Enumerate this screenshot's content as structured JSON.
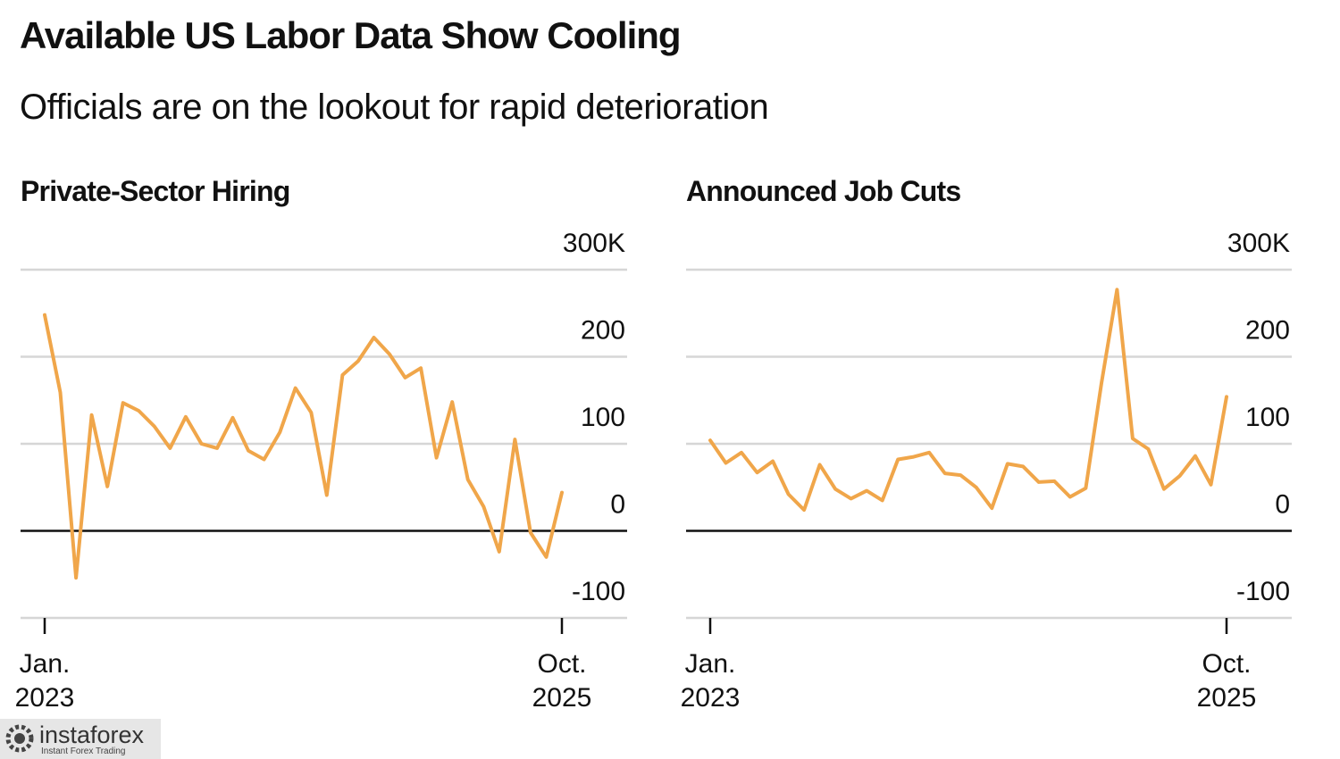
{
  "title": "Available US Labor Data Show Cooling",
  "subtitle": "Officials are on the lookout for rapid deterioration",
  "chart_data": [
    {
      "type": "line",
      "title": "Private-Sector Hiring",
      "color": "#f0a64a",
      "categories": [
        "Jan.\n2023",
        null,
        null,
        null,
        null,
        null,
        null,
        null,
        null,
        null,
        null,
        null,
        null,
        null,
        null,
        null,
        null,
        null,
        null,
        null,
        null,
        null,
        null,
        null,
        null,
        null,
        null,
        null,
        null,
        null,
        null,
        null,
        null,
        "Oct.\n2025"
      ],
      "values": [
        248,
        159,
        -54,
        133,
        51,
        147,
        138,
        120,
        95,
        131,
        100,
        95,
        130,
        92,
        82,
        113,
        164,
        136,
        41,
        179,
        195,
        222,
        203,
        176,
        187,
        84,
        148,
        59,
        28,
        -24,
        105,
        -2,
        -30,
        44
      ],
      "ylim": [
        -100,
        300
      ],
      "yticks": [
        -100,
        0,
        100,
        200,
        {
          "value": 300,
          "label": "300K"
        }
      ],
      "grid": true
    },
    {
      "type": "line",
      "title": "Announced Job Cuts",
      "color": "#f0a64a",
      "categories": [
        "Jan.\n2023",
        null,
        null,
        null,
        null,
        null,
        null,
        null,
        null,
        null,
        null,
        null,
        null,
        null,
        null,
        null,
        null,
        null,
        null,
        null,
        null,
        null,
        null,
        null,
        null,
        null,
        null,
        null,
        null,
        null,
        null,
        null,
        null,
        "Oct.\n2025"
      ],
      "values": [
        104,
        78,
        90,
        67,
        80,
        42,
        24,
        76,
        48,
        37,
        46,
        35,
        82,
        85,
        90,
        66,
        64,
        50,
        26,
        77,
        74,
        56,
        57,
        39,
        49,
        169,
        277,
        106,
        94,
        48,
        63,
        86,
        53,
        154
      ],
      "ylim": [
        -100,
        300
      ],
      "yticks": [
        -100,
        0,
        100,
        200,
        {
          "value": 300,
          "label": "300K"
        }
      ],
      "grid": true
    }
  ],
  "watermark": {
    "name": "instaforex",
    "tagline": "Instant Forex Trading"
  }
}
